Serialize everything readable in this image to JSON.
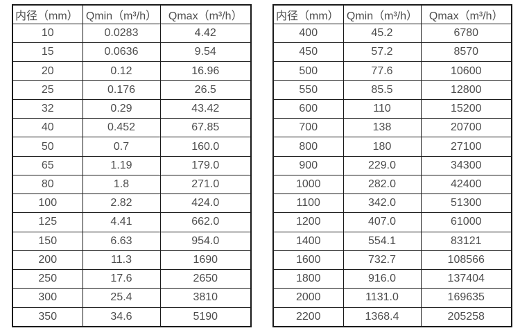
{
  "tables": [
    {
      "name": "flow-table-small-diameters",
      "headers": [
        "内径（mm）",
        "Qmin（m³/h）",
        "Qmax（m³/h）"
      ],
      "rows": [
        [
          "10",
          "0.0283",
          "4.42"
        ],
        [
          "15",
          "0.0636",
          "9.54"
        ],
        [
          "20",
          "0.12",
          "16.96"
        ],
        [
          "25",
          "0.176",
          "26.5"
        ],
        [
          "32",
          "0.29",
          "43.42"
        ],
        [
          "40",
          "0.452",
          "67.85"
        ],
        [
          "50",
          "0.7",
          "160.0"
        ],
        [
          "65",
          "1.19",
          "179.0"
        ],
        [
          "80",
          "1.8",
          "271.0"
        ],
        [
          "100",
          "2.82",
          "424.0"
        ],
        [
          "125",
          "4.41",
          "662.0"
        ],
        [
          "150",
          "6.63",
          "954.0"
        ],
        [
          "200",
          "11.3",
          "1690"
        ],
        [
          "250",
          "17.6",
          "2650"
        ],
        [
          "300",
          "25.4",
          "3810"
        ],
        [
          "350",
          "34.6",
          "5190"
        ]
      ]
    },
    {
      "name": "flow-table-large-diameters",
      "headers": [
        "内径（mm）",
        "Qmin（m³/h）",
        "Qmax（m³/h）"
      ],
      "rows": [
        [
          "400",
          "45.2",
          "6780"
        ],
        [
          "450",
          "57.2",
          "8570"
        ],
        [
          "500",
          "77.6",
          "10600"
        ],
        [
          "550",
          "85.5",
          "12800"
        ],
        [
          "600",
          "110",
          "15200"
        ],
        [
          "700",
          "138",
          "20700"
        ],
        [
          "800",
          "180",
          "27100"
        ],
        [
          "900",
          "229.0",
          "34300"
        ],
        [
          "1000",
          "282.0",
          "42400"
        ],
        [
          "1100",
          "342.0",
          "51300"
        ],
        [
          "1200",
          "407.0",
          "61000"
        ],
        [
          "1400",
          "554.1",
          "83121"
        ],
        [
          "1600",
          "732.7",
          "108566"
        ],
        [
          "1800",
          "916.0",
          "137404"
        ],
        [
          "2000",
          "1131.0",
          "169635"
        ],
        [
          "2200",
          "1368.4",
          "205258"
        ]
      ]
    }
  ],
  "colors": {
    "text": "#4d4d4d",
    "border": "#1a1a1a",
    "background": "#ffffff"
  }
}
